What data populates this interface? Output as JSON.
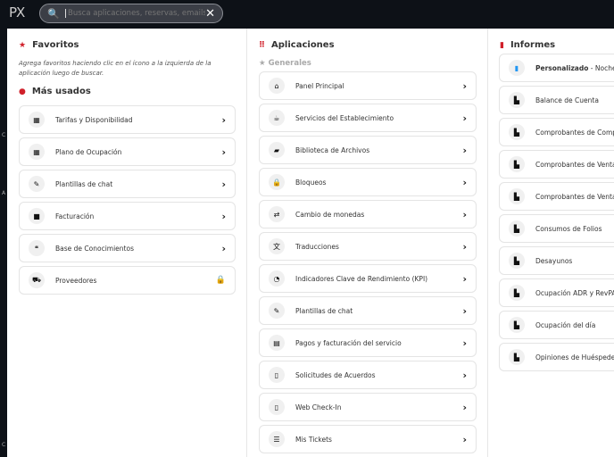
{
  "topbar": {
    "logo": "PX",
    "search_placeholder": "Busca aplicaciones, reservas, emails y más"
  },
  "background_edge": [
    "C",
    "A",
    "C"
  ],
  "favoritos": {
    "title": "Favoritos",
    "hint": "Agrega favoritos haciendo clic en el ícono a la izquierda de la aplicación luego de buscar."
  },
  "mas_usados": {
    "title": "Más usados",
    "items": [
      {
        "label": "Tarifas y Disponibilidad",
        "icon": "calendar-icon"
      },
      {
        "label": "Plano de Ocupación",
        "icon": "calendar-icon"
      },
      {
        "label": "Plantillas de chat",
        "icon": "template-icon"
      },
      {
        "label": "Facturación",
        "icon": "square-icon"
      },
      {
        "label": "Base de Conocimientos",
        "icon": "chat-icon"
      },
      {
        "label": "Proveedores",
        "icon": "truck-icon",
        "locked": true
      }
    ]
  },
  "aplicaciones": {
    "title": "Aplicaciones",
    "group": "Generales",
    "items": [
      {
        "label": "Panel Principal",
        "icon": "home-icon"
      },
      {
        "label": "Servicios del Establecimiento",
        "icon": "coffee-icon"
      },
      {
        "label": "Biblioteca de Archivos",
        "icon": "folder-icon"
      },
      {
        "label": "Bloqueos",
        "icon": "lock-icon"
      },
      {
        "label": "Cambio de monedas",
        "icon": "exchange-icon"
      },
      {
        "label": "Traducciones",
        "icon": "translate-icon"
      },
      {
        "label": "Indicadores Clave de Rendimiento (KPI)",
        "icon": "gauge-icon"
      },
      {
        "label": "Plantillas de chat",
        "icon": "template-icon"
      },
      {
        "label": "Pagos y facturación del servicio",
        "icon": "money-icon"
      },
      {
        "label": "Solicitudes de Acuerdos",
        "icon": "document-icon"
      },
      {
        "label": "Web Check-In",
        "icon": "mobile-icon"
      },
      {
        "label": "Mis Tickets",
        "icon": "list-icon"
      }
    ]
  },
  "informes": {
    "title": "Informes",
    "custom": {
      "bold": "Personalizado",
      "rest": " - Noches por"
    },
    "items": [
      "Balance de Cuenta",
      "Comprobantes de Compra Fi",
      "Comprobantes de Venta",
      "Comprobantes de Venta Fisca",
      "Consumos de Folios",
      "Desayunos",
      "Ocupación ADR y RevPAR (re",
      "Ocupación del día",
      "Opiniones de Huéspedes"
    ]
  },
  "colors": {
    "accent": "#d0202a",
    "custom_report": "#2196f3"
  }
}
